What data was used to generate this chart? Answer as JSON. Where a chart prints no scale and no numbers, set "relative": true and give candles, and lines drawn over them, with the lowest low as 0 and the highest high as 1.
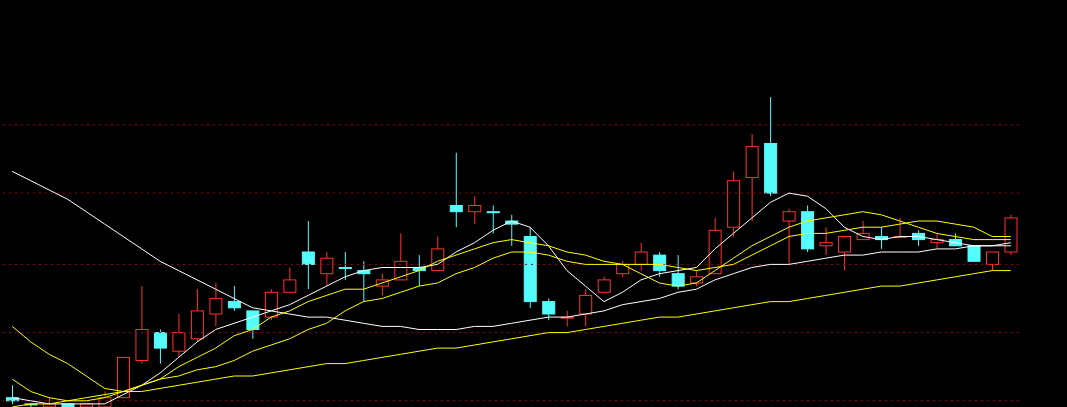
{
  "chart_data": {
    "type": "candlestick",
    "relative": true,
    "ref_lines": [
      {
        "axis": "y",
        "value": 0.02,
        "color": "#a00000",
        "line_style": "dotted"
      },
      {
        "axis": "y",
        "value": 0.24,
        "color": "#a00000",
        "line_style": "dotted"
      },
      {
        "axis": "y",
        "value": 0.46,
        "color": "#a00000",
        "line_style": "dotted"
      },
      {
        "axis": "y",
        "value": 0.69,
        "color": "#a00000",
        "line_style": "dotted"
      },
      {
        "axis": "y",
        "value": 0.91,
        "color": "#a00000",
        "line_style": "dotted"
      }
    ],
    "tick_labels": false,
    "categories": [
      null,
      null,
      null,
      null,
      null,
      null,
      null,
      null,
      null,
      null,
      null,
      null,
      null,
      null,
      null,
      null,
      null,
      null,
      null,
      null,
      null,
      null,
      null,
      null,
      null,
      null,
      null,
      null,
      null,
      null,
      null,
      null,
      null,
      null,
      null,
      null,
      null,
      null,
      null,
      null,
      null,
      null,
      null,
      null,
      null,
      null,
      null,
      null,
      null,
      null,
      null,
      null,
      null,
      null,
      null
    ],
    "ohlc": [
      [
        0.03,
        0.07,
        0.01,
        0.02
      ],
      [
        0.01,
        0.01,
        0,
        0.01
      ],
      [
        0,
        0.03,
        0,
        0.01
      ],
      [
        0.01,
        0.01,
        0,
        0
      ],
      [
        0,
        0.01,
        0,
        0.01
      ],
      [
        0,
        0.05,
        0,
        0.03
      ],
      [
        0.03,
        0.16,
        0.03,
        0.16
      ],
      [
        0.15,
        0.39,
        0.14,
        0.25
      ],
      [
        0.24,
        0.25,
        0.14,
        0.19
      ],
      [
        0.18,
        0.3,
        0.16,
        0.24
      ],
      [
        0.22,
        0.38,
        0.21,
        0.31
      ],
      [
        0.3,
        0.4,
        0.26,
        0.35
      ],
      [
        0.34,
        0.39,
        0.31,
        0.32
      ],
      [
        0.31,
        0.31,
        0.22,
        0.25
      ],
      [
        0.29,
        0.38,
        0.28,
        0.37
      ],
      [
        0.37,
        0.45,
        0.37,
        0.41
      ],
      [
        0.5,
        0.6,
        0.38,
        0.46
      ],
      [
        0.43,
        0.5,
        0.39,
        0.48
      ],
      [
        0.45,
        0.5,
        0.41,
        0.45
      ],
      [
        0.44,
        0.47,
        0.34,
        0.43
      ],
      [
        0.39,
        0.43,
        0.36,
        0.41
      ],
      [
        0.41,
        0.56,
        0.41,
        0.47
      ],
      [
        0.45,
        0.49,
        0.39,
        0.44
      ],
      [
        0.44,
        0.55,
        0.44,
        0.51
      ],
      [
        0.65,
        0.82,
        0.58,
        0.63
      ],
      [
        0.63,
        0.68,
        0.59,
        0.65
      ],
      [
        0.63,
        0.65,
        0.56,
        0.63
      ],
      [
        0.6,
        0.62,
        0.52,
        0.59
      ],
      [
        0.55,
        0.58,
        0.32,
        0.34
      ],
      [
        0.34,
        0.35,
        0.28,
        0.3
      ],
      [
        0.29,
        0.31,
        0.26,
        0.29
      ],
      [
        0.3,
        0.38,
        0.26,
        0.36
      ],
      [
        0.37,
        0.42,
        0.37,
        0.41
      ],
      [
        0.43,
        0.47,
        0.42,
        0.46
      ],
      [
        0.46,
        0.53,
        0.44,
        0.5
      ],
      [
        0.49,
        0.5,
        0.42,
        0.44
      ],
      [
        0.43,
        0.49,
        0.38,
        0.39
      ],
      [
        0.4,
        0.44,
        0.39,
        0.42
      ],
      [
        0.43,
        0.61,
        0.43,
        0.57
      ],
      [
        0.58,
        0.76,
        0.55,
        0.73
      ],
      [
        0.74,
        0.88,
        0.6,
        0.84
      ],
      [
        0.85,
        1,
        0.68,
        0.69
      ],
      [
        0.6,
        0.64,
        0.46,
        0.63
      ],
      [
        0.63,
        0.65,
        0.5,
        0.51
      ],
      [
        0.52,
        0.58,
        0.49,
        0.53
      ],
      [
        0.5,
        0.55,
        0.44,
        0.55
      ],
      [
        0.54,
        0.6,
        0.54,
        0.56
      ],
      [
        0.55,
        0.58,
        0.51,
        0.54
      ],
      [
        0.55,
        0.61,
        0.55,
        0.55
      ],
      [
        0.56,
        0.57,
        0.52,
        0.54
      ],
      [
        0.53,
        0.56,
        0.51,
        0.54
      ],
      [
        0.54,
        0.56,
        0.52,
        0.52
      ],
      [
        0.52,
        0.52,
        0.47,
        0.47
      ],
      [
        0.46,
        0.5,
        0.44,
        0.5
      ],
      [
        0.5,
        0.62,
        0.49,
        0.61
      ]
    ],
    "colors": [
      "#54fcfc",
      "#54fcfc",
      "#ff3232",
      "#54fcfc",
      "#ff3232",
      "#ff3232",
      "#ff3232",
      "#ff3232",
      "#54fcfc",
      "#ff3232",
      "#ff3232",
      "#ff3232",
      "#54fcfc",
      "#54fcfc",
      "#ff3232",
      "#ff3232",
      "#54fcfc",
      "#ff3232",
      "#54fcfc",
      "#54fcfc",
      "#ff3232",
      "#ff3232",
      "#54fcfc",
      "#ff3232",
      "#54fcfc",
      "#ff3232",
      "#54fcfc",
      "#54fcfc",
      "#54fcfc",
      "#54fcfc",
      "#ff3232",
      "#ff3232",
      "#ff3232",
      "#ff3232",
      "#ff3232",
      "#54fcfc",
      "#54fcfc",
      "#ff3232",
      "#ff3232",
      "#ff3232",
      "#ff3232",
      "#54fcfc",
      "#ff3232",
      "#54fcfc",
      "#ff3232",
      "#ff3232",
      "#ff3232",
      "#54fcfc",
      "#ff3232",
      "#54fcfc",
      "#ff3232",
      "#54fcfc",
      "#54fcfc",
      "#ff3232",
      "#ff3232"
    ],
    "series": [
      {
        "type": "line",
        "color": "#ffffff",
        "values": [
          0.76,
          0.73,
          0.7,
          0.67,
          0.63,
          0.59,
          0.55,
          0.51,
          0.47,
          0.44,
          0.41,
          0.38,
          0.35,
          0.32,
          0.31,
          0.3,
          0.29,
          0.29,
          0.28,
          0.27,
          0.26,
          0.26,
          0.25,
          0.25,
          0.25,
          0.26,
          0.26,
          0.27,
          0.28,
          0.29,
          0.29,
          0.3,
          0.31,
          0.33,
          0.34,
          0.35,
          0.37,
          0.38,
          0.41,
          0.43,
          0.45,
          0.46,
          0.46,
          0.47,
          0.48,
          0.49,
          0.49,
          0.5,
          0.5,
          0.5,
          0.51,
          0.51,
          0.52,
          0.52,
          0.52
        ]
      },
      {
        "type": "line",
        "color": "#ffffff",
        "values": [
          0.03,
          0.02,
          0.01,
          0.01,
          0.01,
          0.01,
          0.04,
          0.07,
          0.11,
          0.16,
          0.21,
          0.25,
          0.27,
          0.29,
          0.31,
          0.33,
          0.36,
          0.39,
          0.42,
          0.44,
          0.45,
          0.45,
          0.45,
          0.46,
          0.5,
          0.53,
          0.57,
          0.6,
          0.58,
          0.52,
          0.44,
          0.39,
          0.34,
          0.37,
          0.41,
          0.43,
          0.44,
          0.45,
          0.51,
          0.56,
          0.61,
          0.66,
          0.69,
          0.68,
          0.64,
          0.58,
          0.55,
          0.54,
          0.55,
          0.55,
          0.54,
          0.53,
          0.52,
          0.52,
          0.53
        ]
      },
      {
        "type": "line",
        "color": "#ffff00",
        "values": [
          0.09,
          0.05,
          0.03,
          0.02,
          0.02,
          0.03,
          0.05,
          0.07,
          0.09,
          0.13,
          0.16,
          0.19,
          0.23,
          0.25,
          0.29,
          0.31,
          0.34,
          0.36,
          0.38,
          0.38,
          0.4,
          0.42,
          0.44,
          0.47,
          0.49,
          0.51,
          0.53,
          0.54,
          0.53,
          0.52,
          0.5,
          0.49,
          0.47,
          0.46,
          0.43,
          0.4,
          0.39,
          0.4,
          0.44,
          0.48,
          0.52,
          0.55,
          0.58,
          0.6,
          0.61,
          0.62,
          0.63,
          0.62,
          0.6,
          0.58,
          0.56,
          0.55,
          0.54,
          0.54,
          0.54
        ]
      },
      {
        "type": "line",
        "color": "#ffff00",
        "values": [
          0.26,
          0.21,
          0.17,
          0.14,
          0.1,
          0.06,
          0.05,
          0.07,
          0.09,
          0.1,
          0.12,
          0.13,
          0.15,
          0.18,
          0.2,
          0.22,
          0.25,
          0.27,
          0.31,
          0.34,
          0.35,
          0.37,
          0.39,
          0.4,
          0.43,
          0.45,
          0.48,
          0.5,
          0.5,
          0.49,
          0.47,
          0.46,
          0.46,
          0.46,
          0.46,
          0.46,
          0.45,
          0.44,
          0.45,
          0.46,
          0.49,
          0.52,
          0.55,
          0.56,
          0.56,
          0.57,
          0.58,
          0.58,
          0.59,
          0.6,
          0.6,
          0.59,
          0.58,
          0.55,
          0.55
        ]
      },
      {
        "type": "line",
        "color": "#ffff00",
        "values": [
          0,
          0.01,
          0.01,
          0.02,
          0.03,
          0.04,
          0.05,
          0.05,
          0.06,
          0.07,
          0.08,
          0.09,
          0.1,
          0.1,
          0.11,
          0.12,
          0.13,
          0.14,
          0.14,
          0.15,
          0.16,
          0.17,
          0.18,
          0.19,
          0.19,
          0.2,
          0.21,
          0.22,
          0.23,
          0.24,
          0.24,
          0.25,
          0.26,
          0.27,
          0.28,
          0.29,
          0.29,
          0.3,
          0.31,
          0.32,
          0.33,
          0.34,
          0.34,
          0.35,
          0.36,
          0.37,
          0.38,
          0.39,
          0.39,
          0.4,
          0.41,
          0.42,
          0.43,
          0.44,
          0.44
        ]
      }
    ]
  }
}
